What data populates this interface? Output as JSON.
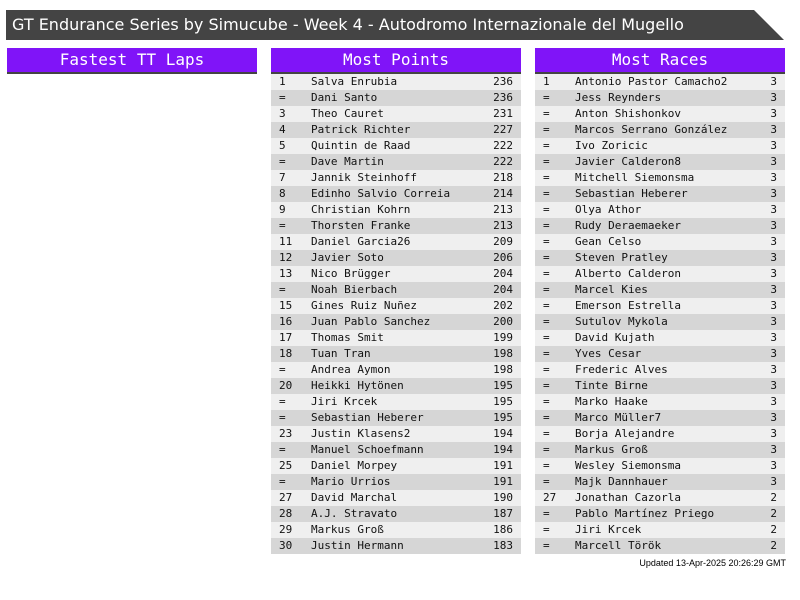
{
  "title": "GT Endurance Series by Simucube - Week 4 - Autodromo Internazionale del Mugello",
  "colors": {
    "header_bg": "#8014f8",
    "title_bg": "#444444"
  },
  "panels": [
    {
      "title": "Fastest TT Laps",
      "rows": []
    },
    {
      "title": "Most Points",
      "rows": [
        [
          "1",
          "Salva Enrubia",
          "236"
        ],
        [
          "=",
          "Dani Santo",
          "236"
        ],
        [
          "3",
          "Theo Cauret",
          "231"
        ],
        [
          "4",
          "Patrick Richter",
          "227"
        ],
        [
          "5",
          "Quintin de Raad",
          "222"
        ],
        [
          "=",
          "Dave Martin",
          "222"
        ],
        [
          "7",
          "Jannik Steinhoff",
          "218"
        ],
        [
          "8",
          "Edinho Salvio Correia",
          "214"
        ],
        [
          "9",
          "Christian Kohrn",
          "213"
        ],
        [
          "=",
          "Thorsten Franke",
          "213"
        ],
        [
          "11",
          "Daniel Garcia26",
          "209"
        ],
        [
          "12",
          "Javier Soto",
          "206"
        ],
        [
          "13",
          "Nico Brügger",
          "204"
        ],
        [
          "=",
          "Noah Bierbach",
          "204"
        ],
        [
          "15",
          "Gines Ruiz Nuñez",
          "202"
        ],
        [
          "16",
          "Juan Pablo Sanchez",
          "200"
        ],
        [
          "17",
          "Thomas Smit",
          "199"
        ],
        [
          "18",
          "Tuan Tran",
          "198"
        ],
        [
          "=",
          "Andrea Aymon",
          "198"
        ],
        [
          "20",
          "Heikki Hytönen",
          "195"
        ],
        [
          "=",
          "Jiri Krcek",
          "195"
        ],
        [
          "=",
          "Sebastian Heberer",
          "195"
        ],
        [
          "23",
          "Justin Klasens2",
          "194"
        ],
        [
          "=",
          "Manuel Schoefmann",
          "194"
        ],
        [
          "25",
          "Daniel Morpey",
          "191"
        ],
        [
          "=",
          "Mario Urrios",
          "191"
        ],
        [
          "27",
          "David Marchal",
          "190"
        ],
        [
          "28",
          "A.J. Stravato",
          "187"
        ],
        [
          "29",
          "Markus Groß",
          "186"
        ],
        [
          "30",
          "Justin Hermann",
          "183"
        ]
      ]
    },
    {
      "title": "Most Races",
      "rows": [
        [
          "1",
          "Antonio Pastor Camacho2",
          "3"
        ],
        [
          "=",
          "Jess Reynders",
          "3"
        ],
        [
          "=",
          "Anton Shishonkov",
          "3"
        ],
        [
          "=",
          "Marcos Serrano González",
          "3"
        ],
        [
          "=",
          "Ivo Zoricic",
          "3"
        ],
        [
          "=",
          "Javier Calderon8",
          "3"
        ],
        [
          "=",
          "Mitchell Siemonsma",
          "3"
        ],
        [
          "=",
          "Sebastian Heberer",
          "3"
        ],
        [
          "=",
          "Olya Athor",
          "3"
        ],
        [
          "=",
          "Rudy Deraemaeker",
          "3"
        ],
        [
          "=",
          "Gean Celso",
          "3"
        ],
        [
          "=",
          "Steven Pratley",
          "3"
        ],
        [
          "=",
          "Alberto Calderon",
          "3"
        ],
        [
          "=",
          "Marcel Kies",
          "3"
        ],
        [
          "=",
          "Emerson Estrella",
          "3"
        ],
        [
          "=",
          "Sutulov Mykola",
          "3"
        ],
        [
          "=",
          "David Kujath",
          "3"
        ],
        [
          "=",
          "Yves Cesar",
          "3"
        ],
        [
          "=",
          "Frederic Alves",
          "3"
        ],
        [
          "=",
          "Tinte Birne",
          "3"
        ],
        [
          "=",
          "Marko Haake",
          "3"
        ],
        [
          "=",
          "Marco Müller7",
          "3"
        ],
        [
          "=",
          "Borja Alejandre",
          "3"
        ],
        [
          "=",
          "Markus Groß",
          "3"
        ],
        [
          "=",
          "Wesley Siemonsma",
          "3"
        ],
        [
          "=",
          "Majk Dannhauer",
          "3"
        ],
        [
          "27",
          "Jonathan Cazorla",
          "2"
        ],
        [
          "=",
          "Pablo Martínez Priego",
          "2"
        ],
        [
          "=",
          "Jiri Krcek",
          "2"
        ],
        [
          "=",
          "Marcell Török",
          "2"
        ]
      ]
    }
  ],
  "footer": "Updated 13-Apr-2025 20:26:29 GMT"
}
